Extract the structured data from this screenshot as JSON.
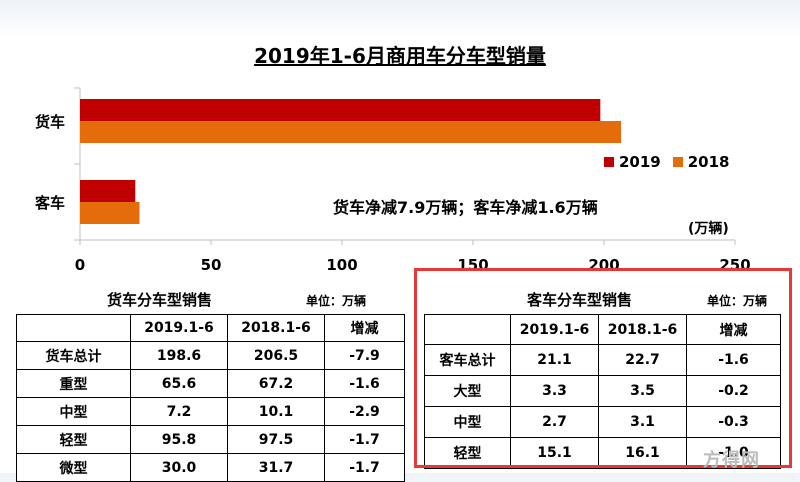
{
  "chart_data": {
    "type": "bar",
    "orientation": "horizontal",
    "title": "2019年1-6月商用车分车型销量",
    "categories": [
      "货车",
      "客车"
    ],
    "series": [
      {
        "name": "2019",
        "values": [
          198.6,
          21.1
        ],
        "color": "#c00000"
      },
      {
        "name": "2018",
        "values": [
          206.5,
          22.7
        ],
        "color": "#e46c0a"
      }
    ],
    "xlim": [
      0,
      250
    ],
    "x_ticks": [
      "0",
      "50",
      "100",
      "150",
      "200",
      "250"
    ],
    "unit": "(万辆)",
    "annotation": "货车净减7.9万辆；客车净减1.6万辆",
    "legend_position": "right",
    "grid": false
  },
  "truck_table": {
    "title": "货车分车型销售",
    "unit": "单位：万辆",
    "headers": [
      "",
      "2019.1-6",
      "2018.1-6",
      "增减"
    ],
    "rows": [
      [
        "货车总计",
        "198.6",
        "206.5",
        "-7.9"
      ],
      [
        "重型",
        "65.6",
        "67.2",
        "-1.6"
      ],
      [
        "中型",
        "7.2",
        "10.1",
        "-2.9"
      ],
      [
        "轻型",
        "95.8",
        "97.5",
        "-1.7"
      ],
      [
        "微型",
        "30.0",
        "31.7",
        "-1.7"
      ]
    ]
  },
  "bus_table": {
    "title": "客车分车型销售",
    "unit": "单位：万辆",
    "headers": [
      "",
      "2019.1-6",
      "2018.1-6",
      "增减"
    ],
    "rows": [
      [
        "客车总计",
        "21.1",
        "22.7",
        "-1.6"
      ],
      [
        "大型",
        "3.3",
        "3.5",
        "-0.2"
      ],
      [
        "中型",
        "2.7",
        "3.1",
        "-0.3"
      ],
      [
        "轻型",
        "15.1",
        "16.1",
        "-1.0"
      ]
    ]
  },
  "highlight_color": "#e53935",
  "watermark": "方得网"
}
